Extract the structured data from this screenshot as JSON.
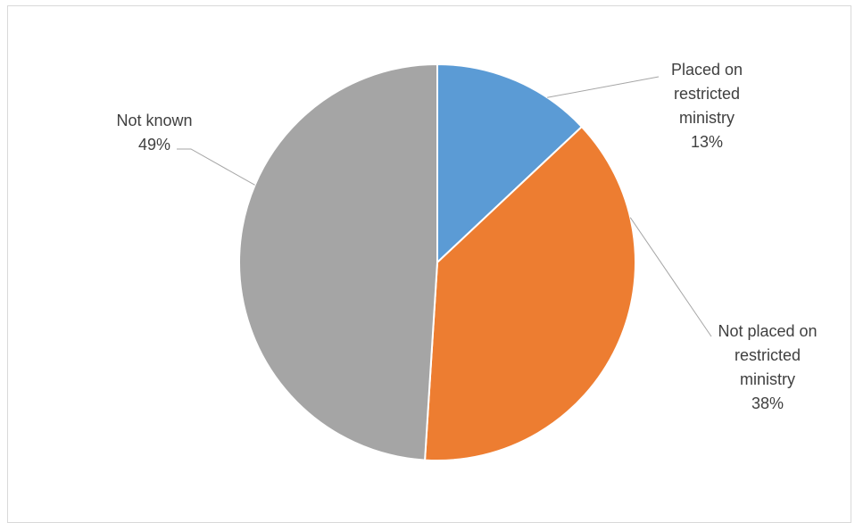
{
  "chart_data": {
    "type": "pie",
    "title": "",
    "slices": [
      {
        "label_lines": [
          "Placed on",
          "restricted",
          "ministry"
        ],
        "value": 13,
        "pct_label": "13%",
        "color": "#5b9bd5"
      },
      {
        "label_lines": [
          "Not placed on",
          "restricted",
          "ministry"
        ],
        "value": 38,
        "pct_label": "38%",
        "color": "#ed7d31"
      },
      {
        "label_lines": [
          "Not known"
        ],
        "value": 49,
        "pct_label": "49%",
        "color": "#a5a5a5"
      }
    ],
    "start_angle_deg": 0,
    "direction": "clockwise",
    "legend": "none",
    "data_labels": "outside-with-leader-lines"
  }
}
